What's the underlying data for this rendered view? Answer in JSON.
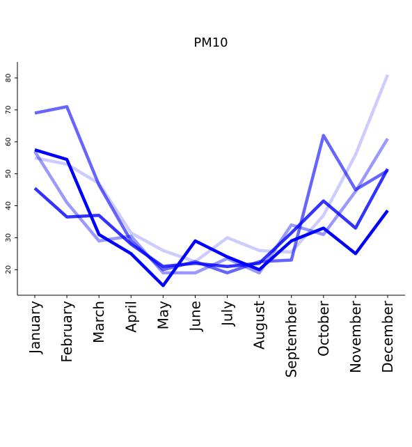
{
  "chart_data": {
    "type": "line",
    "title": "PM10",
    "xlabel": "",
    "ylabel": "",
    "categories": [
      "January",
      "February",
      "March",
      "April",
      "May",
      "June",
      "July",
      "August",
      "September",
      "October",
      "November",
      "December"
    ],
    "yticks": [
      20,
      30,
      40,
      50,
      60,
      70,
      80
    ],
    "ylim": [
      12,
      85
    ],
    "grid": false,
    "series": [
      {
        "color": "#0000ff",
        "opacity": 0.2,
        "values": [
          55,
          53,
          47,
          31.5,
          26,
          22.5,
          30,
          26,
          25.5,
          37,
          56,
          81
        ]
      },
      {
        "color": "#0000ff",
        "opacity": 0.4,
        "values": [
          57,
          41,
          29,
          30.5,
          19,
          19,
          23.5,
          19,
          34,
          31,
          44.5,
          61
        ]
      },
      {
        "color": "#0000ff",
        "opacity": 0.6,
        "values": [
          69,
          71,
          46.5,
          29,
          20,
          22.5,
          19,
          22.5,
          23,
          62,
          45,
          51
        ]
      },
      {
        "color": "#0000ff",
        "opacity": 0.8,
        "values": [
          45.5,
          36.5,
          37,
          28,
          21,
          22,
          21,
          22,
          31.5,
          41.5,
          33,
          51.5
        ]
      },
      {
        "color": "#0000ff",
        "opacity": 1.0,
        "values": [
          57.5,
          54.5,
          31,
          25,
          15,
          29,
          24,
          20,
          29,
          33,
          25,
          38.5
        ]
      }
    ]
  }
}
